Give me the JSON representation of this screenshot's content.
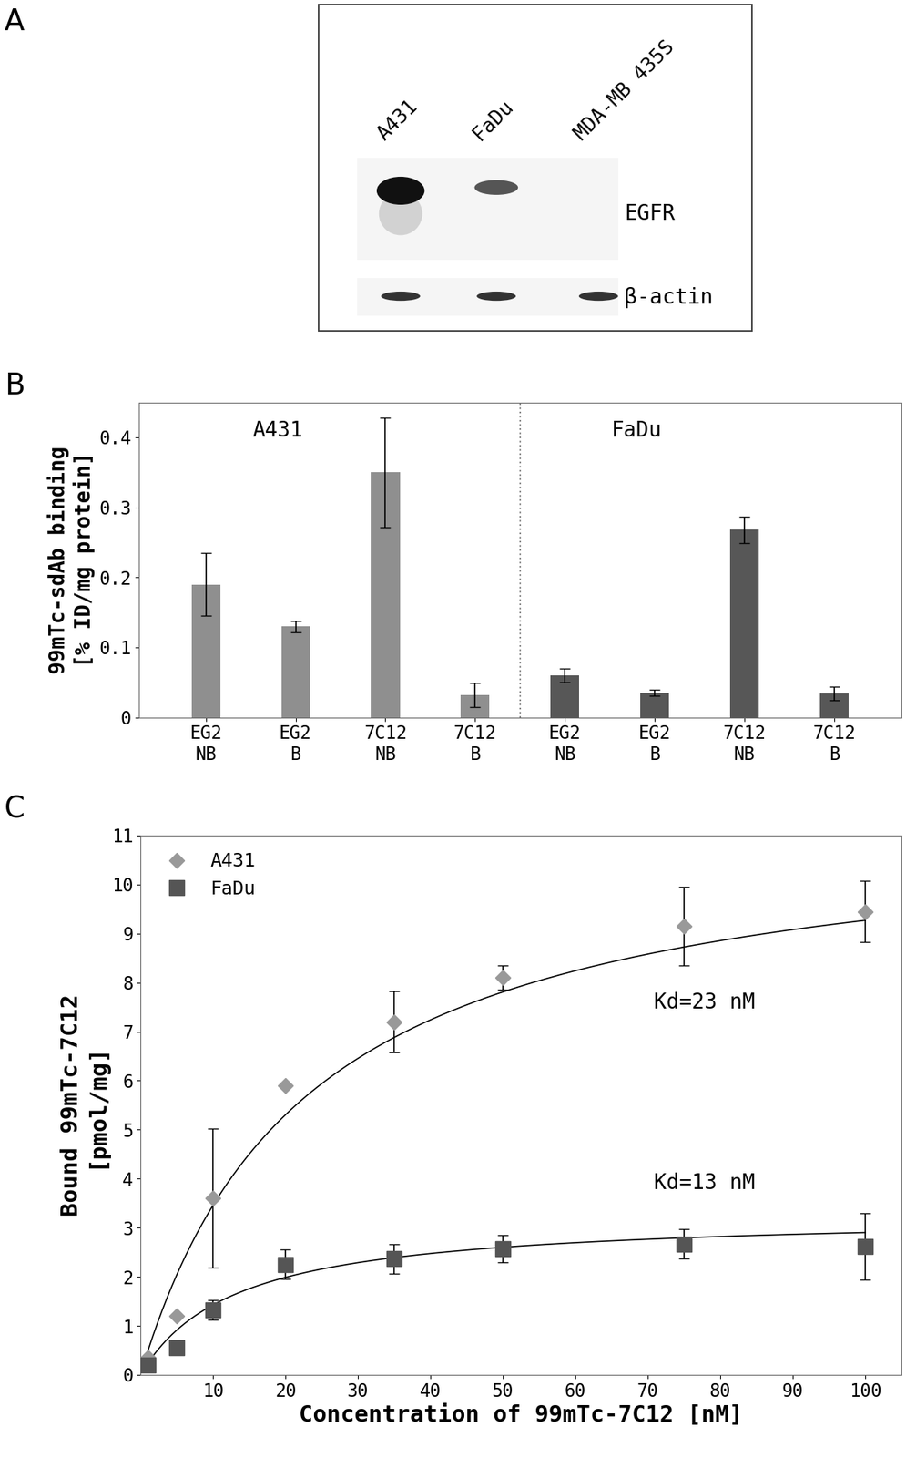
{
  "panel_labels": [
    "A",
    "B",
    "C"
  ],
  "blot": {
    "lanes": [
      "A431",
      "FaDu",
      "MDA-MB 435S"
    ],
    "rows": [
      "EGFR",
      "β-actin"
    ]
  },
  "chart_data": [
    {
      "type": "bar",
      "ylabel": "99mTc-sdAb binding\n[% ID/mg protein]",
      "categories": [
        "EG2\nNB",
        "EG2\nB",
        "7C12\nNB",
        "7C12\nB",
        "EG2\nNB",
        "EG2\nB",
        "7C12\nNB",
        "7C12\nB"
      ],
      "series": [
        {
          "name": "A431",
          "color": "#8f8f8f",
          "values": [
            0.19,
            0.13,
            0.35,
            0.032,
            null,
            null,
            null,
            null
          ],
          "errors": [
            0.045,
            0.008,
            0.078,
            0.017,
            null,
            null,
            null,
            null
          ]
        },
        {
          "name": "FaDu",
          "color": "#575757",
          "values": [
            null,
            null,
            null,
            null,
            0.06,
            0.035,
            0.268,
            0.034
          ],
          "errors": [
            null,
            null,
            null,
            null,
            0.01,
            0.004,
            0.019,
            0.01
          ]
        }
      ],
      "ylim": [
        0,
        0.45
      ],
      "yticks": [
        0,
        0.1,
        0.2,
        0.3,
        0.4
      ],
      "grid": false
    },
    {
      "type": "scatter",
      "xlabel": "Concentration of 99mTc-7C12 [nM]",
      "ylabel": "Bound 99mTc-7C12\n[pmol/mg]",
      "x": [
        1,
        5,
        10,
        20,
        35,
        50,
        75,
        100
      ],
      "series": [
        {
          "name": "A431",
          "color": "#999999",
          "marker": "diamond",
          "values": [
            0.35,
            1.2,
            3.6,
            5.9,
            7.2,
            8.1,
            9.15,
            9.45
          ],
          "errors": [
            0,
            0,
            1.42,
            0,
            0.62,
            0.25,
            0.8,
            0.62
          ],
          "fit": {
            "bmax": 11.4,
            "kd": 23
          },
          "fit_label": "Kd=23 nM"
        },
        {
          "name": "FaDu",
          "color": "#555555",
          "marker": "square",
          "values": [
            0.2,
            0.55,
            1.33,
            2.25,
            2.37,
            2.57,
            2.67,
            2.62
          ],
          "errors": [
            0,
            0,
            0.2,
            0.3,
            0.3,
            0.28,
            0.3,
            0.68
          ],
          "fit": {
            "bmax": 3.28,
            "kd": 13
          },
          "fit_label": "Kd=13 nM"
        }
      ],
      "xlim": [
        0,
        105
      ],
      "xticks": [
        10,
        20,
        30,
        40,
        50,
        60,
        70,
        80,
        90,
        100
      ],
      "ylim": [
        0,
        11
      ],
      "yticks": [
        0,
        1,
        2,
        3,
        4,
        5,
        6,
        7,
        8,
        9,
        10,
        11
      ],
      "legend": "upper left",
      "grid": false
    }
  ]
}
